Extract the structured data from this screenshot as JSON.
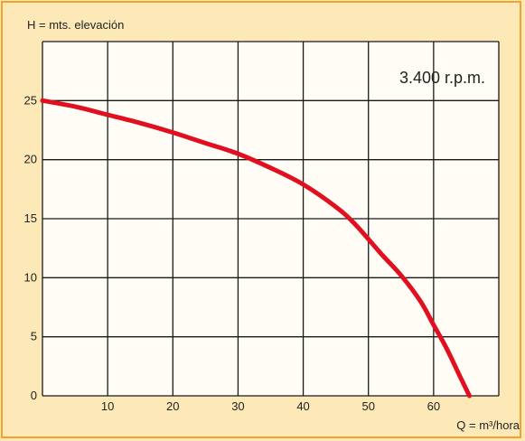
{
  "chart_data": {
    "type": "line",
    "ylabel": "H = mts. elevación",
    "xlabel": "Q = m³/hora",
    "annotation": "3.400 r.p.m.",
    "xlim": [
      0,
      70
    ],
    "ylim": [
      0,
      30
    ],
    "xticks": [
      10,
      20,
      30,
      40,
      50,
      60
    ],
    "yticks": [
      0,
      5,
      10,
      15,
      20,
      25
    ],
    "grid": true,
    "series": [
      {
        "x": [
          0,
          5,
          10,
          15,
          20,
          25,
          30,
          35,
          40,
          45,
          48,
          52,
          55,
          58,
          60,
          62,
          64,
          65.5
        ],
        "y": [
          25,
          24.5,
          23.8,
          23.1,
          22.3,
          21.4,
          20.5,
          19.3,
          17.9,
          16.0,
          14.5,
          12.0,
          10.2,
          8.0,
          6.0,
          4.0,
          1.7,
          0
        ]
      }
    ],
    "colors": {
      "curve": "#e01020",
      "grid": "#1a1a1a",
      "plot_background": "#fffdf6",
      "frame": "#f0a22e",
      "page_background": "#fde9b8"
    }
  }
}
